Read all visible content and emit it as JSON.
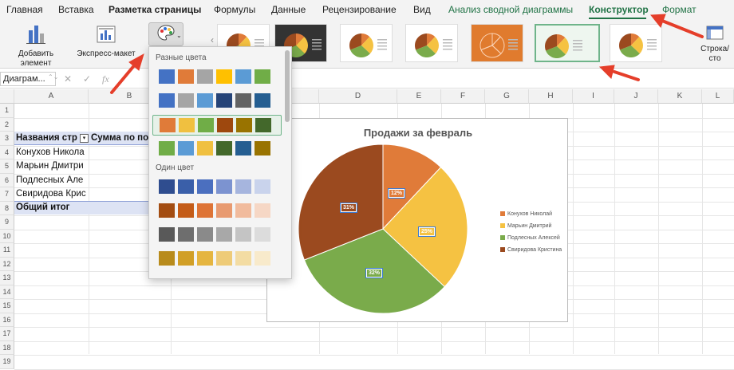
{
  "tabs": [
    "Главная",
    "Вставка",
    "Разметка страницы",
    "Формулы",
    "Данные",
    "Рецензирование",
    "Вид",
    "Анализ сводной диаграммы",
    "Конструктор",
    "Формат"
  ],
  "ribbon": {
    "add_element": "Добавить элемент диаграммы",
    "express_layout": "Экспресс-макет",
    "change_colors_short": "И",
    "row_col": "Строка/сто"
  },
  "formula_bar": {
    "name_box": "Диаграм...",
    "fx": "fx"
  },
  "columns": [
    "A",
    "B",
    "C",
    "D",
    "E",
    "F",
    "G",
    "H",
    "I",
    "J",
    "K",
    "L"
  ],
  "rows": [
    "1",
    "2",
    "3",
    "4",
    "5",
    "6",
    "7",
    "8",
    "9",
    "10",
    "11",
    "12",
    "13",
    "14",
    "15",
    "16",
    "17",
    "18",
    "19"
  ],
  "pivot": {
    "header_a": "Названия стр",
    "header_b": "Сумма по по",
    "items": [
      "Конухов Никола",
      "Марьин Дмитри",
      "Подлесных Але",
      "Свиридова Крис"
    ],
    "total": "Общий итог"
  },
  "dropdown": {
    "section1": "Разные цвета",
    "section2": "Один цвет",
    "multi": [
      [
        "#4472c4",
        "#e07b39",
        "#a5a5a5",
        "#ffc000",
        "#5b9bd5",
        "#70ad47"
      ],
      [
        "#4472c4",
        "#a5a5a5",
        "#5b9bd5",
        "#264478",
        "#636363",
        "#255e91"
      ],
      [
        "#e07b39",
        "#f0c040",
        "#70ad47",
        "#9e480e",
        "#997300",
        "#43682b"
      ],
      [
        "#70ad47",
        "#5b9bd5",
        "#f0c040",
        "#43682b",
        "#255e91",
        "#997300"
      ]
    ],
    "mono": [
      [
        "#2f4d8f",
        "#3a5fa9",
        "#4b6fbf",
        "#7c93d0",
        "#a6b5de",
        "#c9d3ec"
      ],
      [
        "#a34d12",
        "#c45c18",
        "#de7436",
        "#e89a70",
        "#f1bb9d",
        "#f6d7c5"
      ],
      [
        "#595959",
        "#6e6e6e",
        "#8a8a8a",
        "#a8a8a8",
        "#c4c4c4",
        "#dcdcdc"
      ],
      [
        "#b88b1c",
        "#d19f27",
        "#e5b540",
        "#eecb78",
        "#f3dca3",
        "#f8eacb"
      ]
    ]
  },
  "chart_data": {
    "type": "pie",
    "title": "Продажи за февраль",
    "categories": [
      "Конухов Николай",
      "Марьин Дмитрий",
      "Подлесных Алексей",
      "Свиридова Кристина"
    ],
    "values": [
      12,
      25,
      32,
      31
    ],
    "labels": [
      "12%",
      "25%",
      "32%",
      "31%"
    ],
    "colors": [
      "#e07b39",
      "#f5c242",
      "#7aab4b",
      "#9b4a1f"
    ],
    "legend": "right"
  }
}
